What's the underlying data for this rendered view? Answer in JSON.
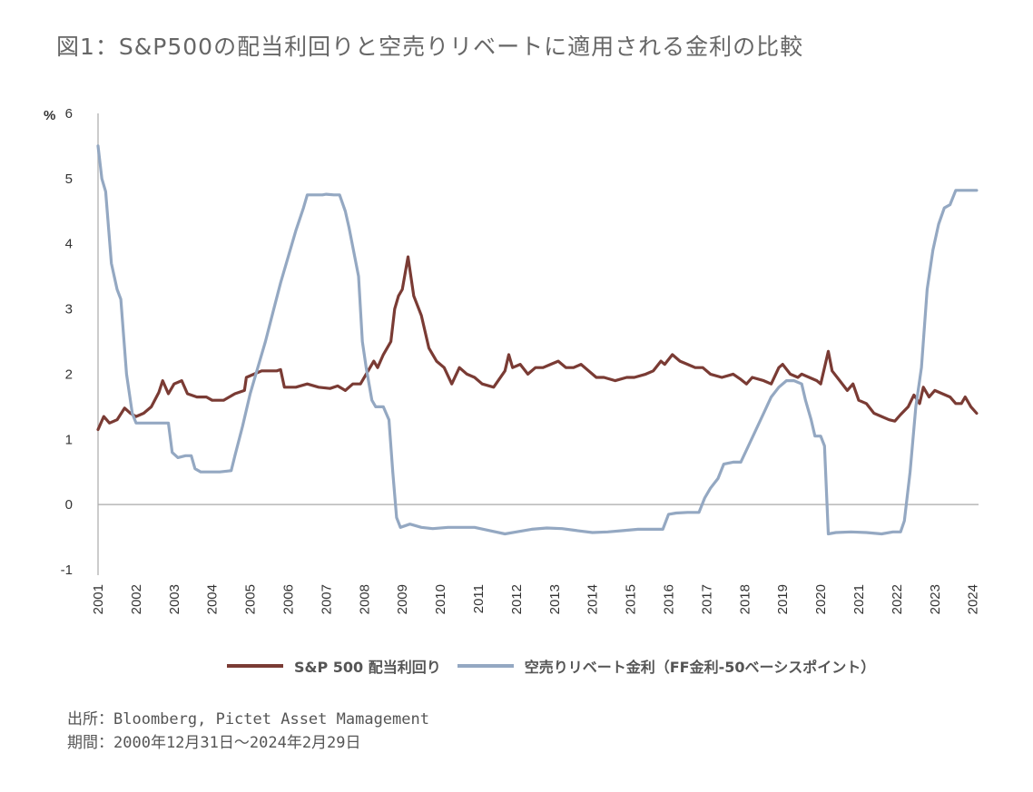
{
  "title": "図1：S&P500の配当利回りと空売りリベートに適用される金利の比較",
  "source_line": "出所：Bloomberg, Pictet Asset Mamagement",
  "period_line": "期間：2000年12月31日～2024年2月29日",
  "chart_data": {
    "type": "line",
    "ylabel": "%",
    "ylim": [
      -1,
      6
    ],
    "yticks": [
      "-1",
      "0",
      "1",
      "2",
      "3",
      "4",
      "5",
      "6"
    ],
    "xlim": [
      2001,
      2024.15
    ],
    "xticks": [
      "2001",
      "2002",
      "2003",
      "2004",
      "2005",
      "2006",
      "2007",
      "2008",
      "2009",
      "2010",
      "2011",
      "2012",
      "2013",
      "2014",
      "2015",
      "2016",
      "2017",
      "2018",
      "2019",
      "2020",
      "2021",
      "2022",
      "2023",
      "2024"
    ],
    "grid": false,
    "legend_position": "bottom",
    "series": [
      {
        "name": "S&P 500 配当利回り",
        "color": "#7a3b34",
        "points": [
          [
            2001.0,
            1.15
          ],
          [
            2001.15,
            1.35
          ],
          [
            2001.3,
            1.25
          ],
          [
            2001.5,
            1.3
          ],
          [
            2001.7,
            1.48
          ],
          [
            2001.85,
            1.4
          ],
          [
            2002.0,
            1.35
          ],
          [
            2002.2,
            1.4
          ],
          [
            2002.4,
            1.5
          ],
          [
            2002.6,
            1.72
          ],
          [
            2002.7,
            1.9
          ],
          [
            2002.85,
            1.7
          ],
          [
            2003.0,
            1.85
          ],
          [
            2003.2,
            1.9
          ],
          [
            2003.35,
            1.7
          ],
          [
            2003.6,
            1.65
          ],
          [
            2003.85,
            1.65
          ],
          [
            2004.0,
            1.6
          ],
          [
            2004.3,
            1.6
          ],
          [
            2004.6,
            1.7
          ],
          [
            2004.85,
            1.75
          ],
          [
            2004.9,
            1.95
          ],
          [
            2005.1,
            2.0
          ],
          [
            2005.3,
            2.05
          ],
          [
            2005.5,
            2.05
          ],
          [
            2005.7,
            2.05
          ],
          [
            2005.8,
            2.07
          ],
          [
            2005.9,
            1.8
          ],
          [
            2006.2,
            1.8
          ],
          [
            2006.5,
            1.85
          ],
          [
            2006.8,
            1.8
          ],
          [
            2007.1,
            1.78
          ],
          [
            2007.3,
            1.82
          ],
          [
            2007.5,
            1.75
          ],
          [
            2007.7,
            1.85
          ],
          [
            2007.9,
            1.85
          ],
          [
            2008.1,
            2.05
          ],
          [
            2008.25,
            2.2
          ],
          [
            2008.35,
            2.1
          ],
          [
            2008.5,
            2.3
          ],
          [
            2008.7,
            2.5
          ],
          [
            2008.8,
            3.0
          ],
          [
            2008.9,
            3.2
          ],
          [
            2009.0,
            3.3
          ],
          [
            2009.15,
            3.8
          ],
          [
            2009.3,
            3.2
          ],
          [
            2009.5,
            2.9
          ],
          [
            2009.7,
            2.4
          ],
          [
            2009.9,
            2.2
          ],
          [
            2010.1,
            2.1
          ],
          [
            2010.3,
            1.85
          ],
          [
            2010.5,
            2.1
          ],
          [
            2010.7,
            2.0
          ],
          [
            2010.9,
            1.95
          ],
          [
            2011.1,
            1.85
          ],
          [
            2011.4,
            1.8
          ],
          [
            2011.7,
            2.05
          ],
          [
            2011.8,
            2.3
          ],
          [
            2011.9,
            2.1
          ],
          [
            2012.1,
            2.15
          ],
          [
            2012.3,
            2.0
          ],
          [
            2012.5,
            2.1
          ],
          [
            2012.7,
            2.1
          ],
          [
            2012.9,
            2.15
          ],
          [
            2013.1,
            2.2
          ],
          [
            2013.3,
            2.1
          ],
          [
            2013.5,
            2.1
          ],
          [
            2013.7,
            2.15
          ],
          [
            2013.9,
            2.05
          ],
          [
            2014.1,
            1.95
          ],
          [
            2014.3,
            1.95
          ],
          [
            2014.6,
            1.9
          ],
          [
            2014.9,
            1.95
          ],
          [
            2015.1,
            1.95
          ],
          [
            2015.4,
            2.0
          ],
          [
            2015.6,
            2.05
          ],
          [
            2015.8,
            2.2
          ],
          [
            2015.9,
            2.15
          ],
          [
            2016.1,
            2.3
          ],
          [
            2016.3,
            2.2
          ],
          [
            2016.5,
            2.15
          ],
          [
            2016.7,
            2.1
          ],
          [
            2016.9,
            2.1
          ],
          [
            2017.1,
            2.0
          ],
          [
            2017.4,
            1.95
          ],
          [
            2017.7,
            2.0
          ],
          [
            2017.9,
            1.92
          ],
          [
            2018.05,
            1.85
          ],
          [
            2018.2,
            1.95
          ],
          [
            2018.5,
            1.9
          ],
          [
            2018.7,
            1.85
          ],
          [
            2018.9,
            2.1
          ],
          [
            2019.0,
            2.15
          ],
          [
            2019.2,
            2.0
          ],
          [
            2019.4,
            1.95
          ],
          [
            2019.5,
            2.0
          ],
          [
            2019.7,
            1.95
          ],
          [
            2019.9,
            1.9
          ],
          [
            2020.0,
            1.85
          ],
          [
            2020.1,
            2.1
          ],
          [
            2020.2,
            2.35
          ],
          [
            2020.3,
            2.05
          ],
          [
            2020.5,
            1.9
          ],
          [
            2020.7,
            1.75
          ],
          [
            2020.85,
            1.85
          ],
          [
            2021.0,
            1.6
          ],
          [
            2021.2,
            1.55
          ],
          [
            2021.4,
            1.4
          ],
          [
            2021.6,
            1.35
          ],
          [
            2021.8,
            1.3
          ],
          [
            2021.95,
            1.28
          ],
          [
            2022.1,
            1.38
          ],
          [
            2022.3,
            1.5
          ],
          [
            2022.45,
            1.68
          ],
          [
            2022.6,
            1.55
          ],
          [
            2022.7,
            1.8
          ],
          [
            2022.85,
            1.65
          ],
          [
            2023.0,
            1.75
          ],
          [
            2023.2,
            1.7
          ],
          [
            2023.4,
            1.65
          ],
          [
            2023.55,
            1.55
          ],
          [
            2023.7,
            1.55
          ],
          [
            2023.8,
            1.65
          ],
          [
            2023.95,
            1.5
          ],
          [
            2024.1,
            1.4
          ]
        ]
      },
      {
        "name": "空売りリベート金利（FF金利-50ベーシスポイント）",
        "color": "#94a8c2",
        "points": [
          [
            2001.0,
            5.5
          ],
          [
            2001.1,
            5.0
          ],
          [
            2001.2,
            4.8
          ],
          [
            2001.35,
            3.7
          ],
          [
            2001.5,
            3.3
          ],
          [
            2001.6,
            3.15
          ],
          [
            2001.75,
            2.0
          ],
          [
            2001.9,
            1.4
          ],
          [
            2002.0,
            1.25
          ],
          [
            2002.3,
            1.25
          ],
          [
            2002.6,
            1.25
          ],
          [
            2002.85,
            1.25
          ],
          [
            2002.95,
            0.8
          ],
          [
            2003.1,
            0.72
          ],
          [
            2003.3,
            0.75
          ],
          [
            2003.45,
            0.75
          ],
          [
            2003.55,
            0.55
          ],
          [
            2003.7,
            0.5
          ],
          [
            2004.0,
            0.5
          ],
          [
            2004.2,
            0.5
          ],
          [
            2004.5,
            0.52
          ],
          [
            2004.6,
            0.75
          ],
          [
            2004.8,
            1.2
          ],
          [
            2005.0,
            1.7
          ],
          [
            2005.2,
            2.1
          ],
          [
            2005.4,
            2.5
          ],
          [
            2005.6,
            2.95
          ],
          [
            2005.8,
            3.4
          ],
          [
            2006.0,
            3.8
          ],
          [
            2006.2,
            4.2
          ],
          [
            2006.4,
            4.55
          ],
          [
            2006.5,
            4.75
          ],
          [
            2006.7,
            4.75
          ],
          [
            2006.9,
            4.75
          ],
          [
            2007.0,
            4.76
          ],
          [
            2007.2,
            4.75
          ],
          [
            2007.35,
            4.75
          ],
          [
            2007.5,
            4.5
          ],
          [
            2007.6,
            4.25
          ],
          [
            2007.7,
            3.95
          ],
          [
            2007.85,
            3.5
          ],
          [
            2007.95,
            2.5
          ],
          [
            2008.05,
            2.1
          ],
          [
            2008.2,
            1.6
          ],
          [
            2008.3,
            1.5
          ],
          [
            2008.5,
            1.5
          ],
          [
            2008.65,
            1.3
          ],
          [
            2008.75,
            0.5
          ],
          [
            2008.85,
            -0.2
          ],
          [
            2008.95,
            -0.35
          ],
          [
            2009.2,
            -0.3
          ],
          [
            2009.5,
            -0.35
          ],
          [
            2009.8,
            -0.37
          ],
          [
            2010.2,
            -0.35
          ],
          [
            2010.6,
            -0.35
          ],
          [
            2010.9,
            -0.35
          ],
          [
            2011.3,
            -0.4
          ],
          [
            2011.7,
            -0.45
          ],
          [
            2012.0,
            -0.42
          ],
          [
            2012.4,
            -0.38
          ],
          [
            2012.8,
            -0.36
          ],
          [
            2013.2,
            -0.37
          ],
          [
            2013.6,
            -0.4
          ],
          [
            2014.0,
            -0.43
          ],
          [
            2014.4,
            -0.42
          ],
          [
            2014.8,
            -0.4
          ],
          [
            2015.2,
            -0.38
          ],
          [
            2015.6,
            -0.38
          ],
          [
            2015.85,
            -0.38
          ],
          [
            2016.0,
            -0.15
          ],
          [
            2016.2,
            -0.13
          ],
          [
            2016.5,
            -0.12
          ],
          [
            2016.8,
            -0.12
          ],
          [
            2016.95,
            0.1
          ],
          [
            2017.1,
            0.25
          ],
          [
            2017.3,
            0.4
          ],
          [
            2017.45,
            0.62
          ],
          [
            2017.7,
            0.65
          ],
          [
            2017.9,
            0.65
          ],
          [
            2018.1,
            0.9
          ],
          [
            2018.3,
            1.15
          ],
          [
            2018.5,
            1.4
          ],
          [
            2018.7,
            1.65
          ],
          [
            2018.9,
            1.8
          ],
          [
            2019.1,
            1.9
          ],
          [
            2019.3,
            1.9
          ],
          [
            2019.5,
            1.85
          ],
          [
            2019.6,
            1.6
          ],
          [
            2019.75,
            1.3
          ],
          [
            2019.85,
            1.05
          ],
          [
            2020.0,
            1.05
          ],
          [
            2020.1,
            0.9
          ],
          [
            2020.2,
            -0.45
          ],
          [
            2020.4,
            -0.43
          ],
          [
            2020.8,
            -0.42
          ],
          [
            2021.2,
            -0.43
          ],
          [
            2021.6,
            -0.45
          ],
          [
            2021.9,
            -0.42
          ],
          [
            2022.1,
            -0.42
          ],
          [
            2022.2,
            -0.25
          ],
          [
            2022.35,
            0.5
          ],
          [
            2022.5,
            1.5
          ],
          [
            2022.65,
            2.1
          ],
          [
            2022.8,
            3.3
          ],
          [
            2022.95,
            3.9
          ],
          [
            2023.1,
            4.3
          ],
          [
            2023.25,
            4.55
          ],
          [
            2023.4,
            4.6
          ],
          [
            2023.55,
            4.82
          ],
          [
            2023.8,
            4.82
          ],
          [
            2024.1,
            4.82
          ]
        ]
      }
    ]
  }
}
